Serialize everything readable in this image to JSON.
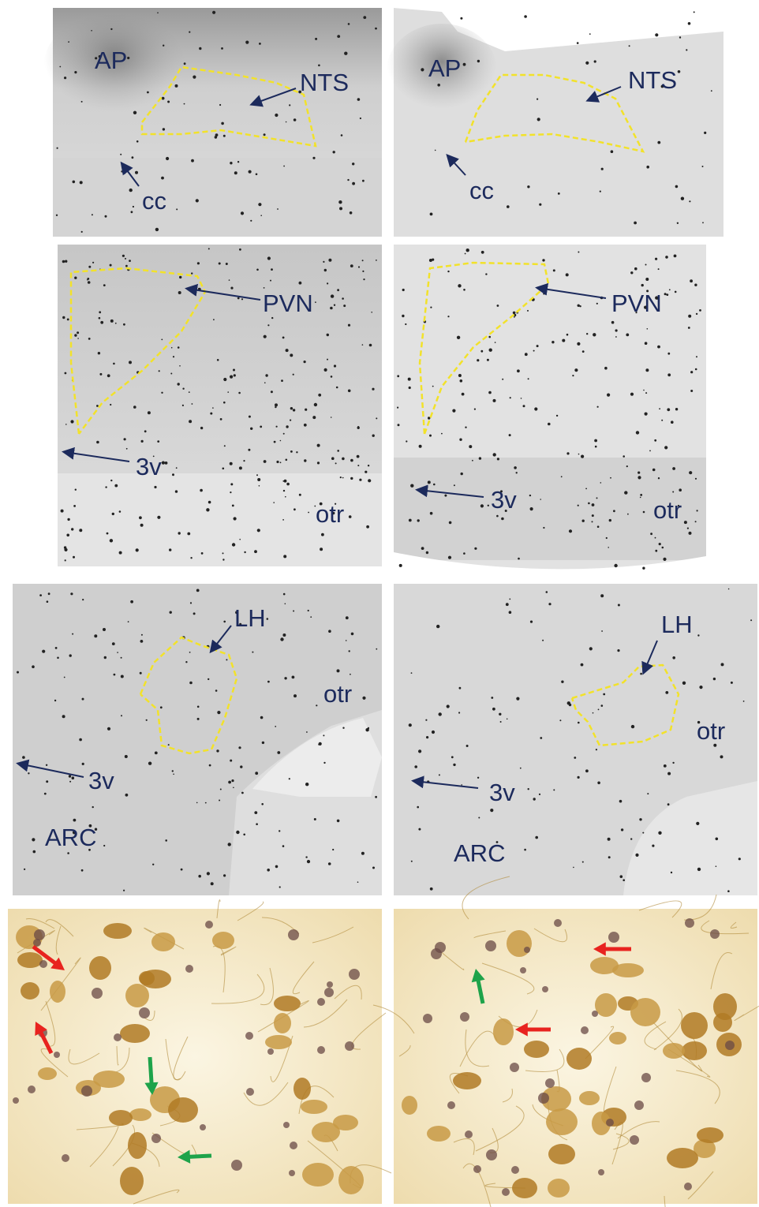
{
  "panels": [
    {
      "labels": [
        "AP",
        "NTS",
        "cc"
      ]
    },
    {
      "labels": [
        "AP",
        "NTS",
        "cc"
      ]
    },
    {
      "labels": [
        "PVN",
        "3v",
        "otr"
      ]
    },
    {
      "labels": [
        "PVN",
        "3v",
        "otr"
      ]
    },
    {
      "labels": [
        "LH",
        "otr",
        "3v",
        "ARC"
      ]
    },
    {
      "labels": [
        "LH",
        "otr",
        "3v",
        "ARC"
      ]
    }
  ]
}
